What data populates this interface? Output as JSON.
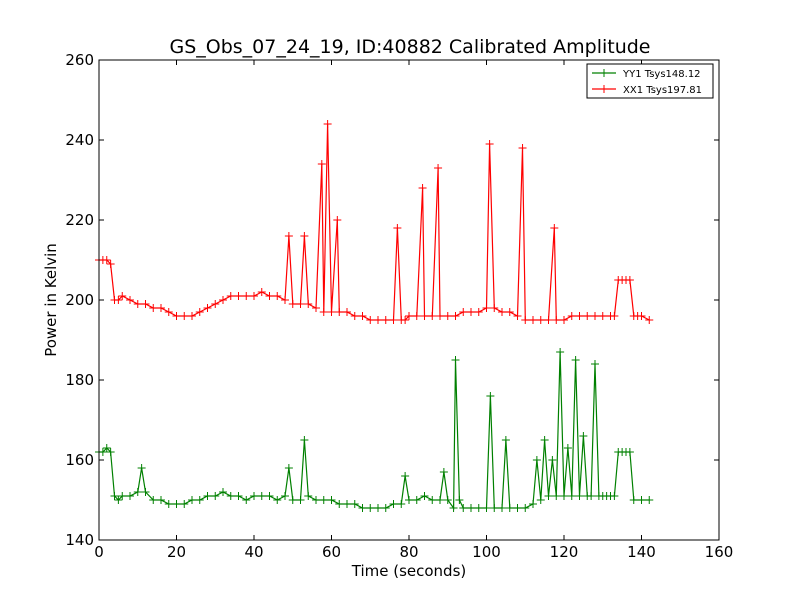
{
  "chart_data": {
    "type": "line",
    "title": "GS_Obs_07_24_19, ID:40882 Calibrated Amplitude",
    "xlabel": "Time (seconds)",
    "ylabel": "Power in Kelvin",
    "xlim": [
      0,
      160
    ],
    "ylim": [
      140,
      260
    ],
    "xticks": [
      "0",
      "20",
      "40",
      "60",
      "80",
      "100",
      "120",
      "140",
      "160"
    ],
    "yticks": [
      "140",
      "160",
      "180",
      "200",
      "220",
      "240",
      "260"
    ],
    "grid": false,
    "legend_position": "top-right",
    "marker": "+",
    "series": [
      {
        "name": "YY1 Tsys148.12",
        "color": "#008000",
        "x": [
          0,
          1,
          2,
          3,
          4,
          5,
          6,
          8,
          10,
          11,
          12,
          14,
          16,
          18,
          20,
          22,
          24,
          26,
          28,
          30,
          32,
          34,
          36,
          38,
          40,
          42,
          44,
          46,
          48,
          49,
          50,
          52,
          53,
          54,
          56,
          58,
          60,
          62,
          64,
          66,
          68,
          70,
          72,
          74,
          76,
          78,
          79,
          80,
          82,
          84,
          86,
          88,
          89,
          90,
          91.5,
          92,
          93,
          94,
          96,
          98,
          100,
          101,
          102,
          104,
          105,
          106,
          108,
          110,
          112,
          113,
          114,
          115,
          116,
          117,
          118,
          119,
          120,
          121,
          122,
          123,
          124,
          125,
          126,
          127,
          128,
          129,
          130,
          131,
          132,
          133,
          134,
          135,
          136,
          137,
          138,
          140,
          142
        ],
        "y": [
          162,
          162,
          163,
          162,
          151,
          150,
          151,
          151,
          152,
          158,
          152,
          150,
          150,
          149,
          149,
          149,
          150,
          150,
          151,
          151,
          152,
          151,
          151,
          150,
          151,
          151,
          151,
          150,
          151,
          158,
          150,
          150,
          165,
          151,
          150,
          150,
          150,
          149,
          149,
          149,
          148,
          148,
          148,
          148,
          149,
          149,
          156,
          150,
          150,
          151,
          150,
          150,
          157,
          150,
          148,
          185,
          150,
          148,
          148,
          148,
          148,
          176,
          148,
          148,
          165,
          148,
          148,
          148,
          149,
          160,
          150,
          165,
          151,
          160,
          151,
          187,
          151,
          163,
          151,
          185,
          151,
          166,
          151,
          151,
          184,
          151,
          151,
          151,
          151,
          151,
          162,
          162,
          162,
          162,
          150,
          150,
          150
        ]
      },
      {
        "name": "XX1 Tsys197.81",
        "color": "#ff0000",
        "x": [
          0,
          1,
          2,
          3,
          4,
          5,
          6,
          8,
          10,
          12,
          14,
          16,
          18,
          20,
          22,
          24,
          26,
          28,
          30,
          32,
          34,
          36,
          38,
          40,
          42,
          44,
          46,
          48,
          49,
          50,
          52,
          53,
          54,
          56,
          57.5,
          58,
          59,
          60,
          61.5,
          62,
          64,
          66,
          68,
          70,
          72,
          74,
          76,
          77,
          78,
          79,
          80,
          82,
          83.5,
          84,
          86,
          87.5,
          88,
          90,
          92,
          94,
          96,
          98,
          100,
          100.8,
          102,
          104,
          106,
          108,
          109.3,
          110,
          112,
          114,
          116,
          117.5,
          118,
          120,
          122,
          124,
          126,
          128,
          130,
          132,
          133,
          134,
          135,
          136,
          137,
          138,
          139,
          140,
          142
        ],
        "y": [
          210,
          210,
          210,
          209,
          200,
          200,
          201,
          200,
          199,
          199,
          198,
          198,
          197,
          196,
          196,
          196,
          197,
          198,
          199,
          200,
          201,
          201,
          201,
          201,
          202,
          201,
          201,
          200,
          216,
          199,
          199,
          216,
          199,
          198,
          234,
          197,
          244,
          197,
          220,
          197,
          197,
          196,
          196,
          195,
          195,
          195,
          195,
          218,
          195,
          195,
          196,
          196,
          228,
          196,
          196,
          233,
          196,
          196,
          196,
          197,
          197,
          197,
          198,
          239,
          198,
          197,
          197,
          196,
          238,
          195,
          195,
          195,
          195,
          218,
          195,
          195,
          196,
          196,
          196,
          196,
          196,
          196,
          196,
          205,
          205,
          205,
          205,
          196,
          196,
          196,
          195
        ]
      }
    ]
  }
}
